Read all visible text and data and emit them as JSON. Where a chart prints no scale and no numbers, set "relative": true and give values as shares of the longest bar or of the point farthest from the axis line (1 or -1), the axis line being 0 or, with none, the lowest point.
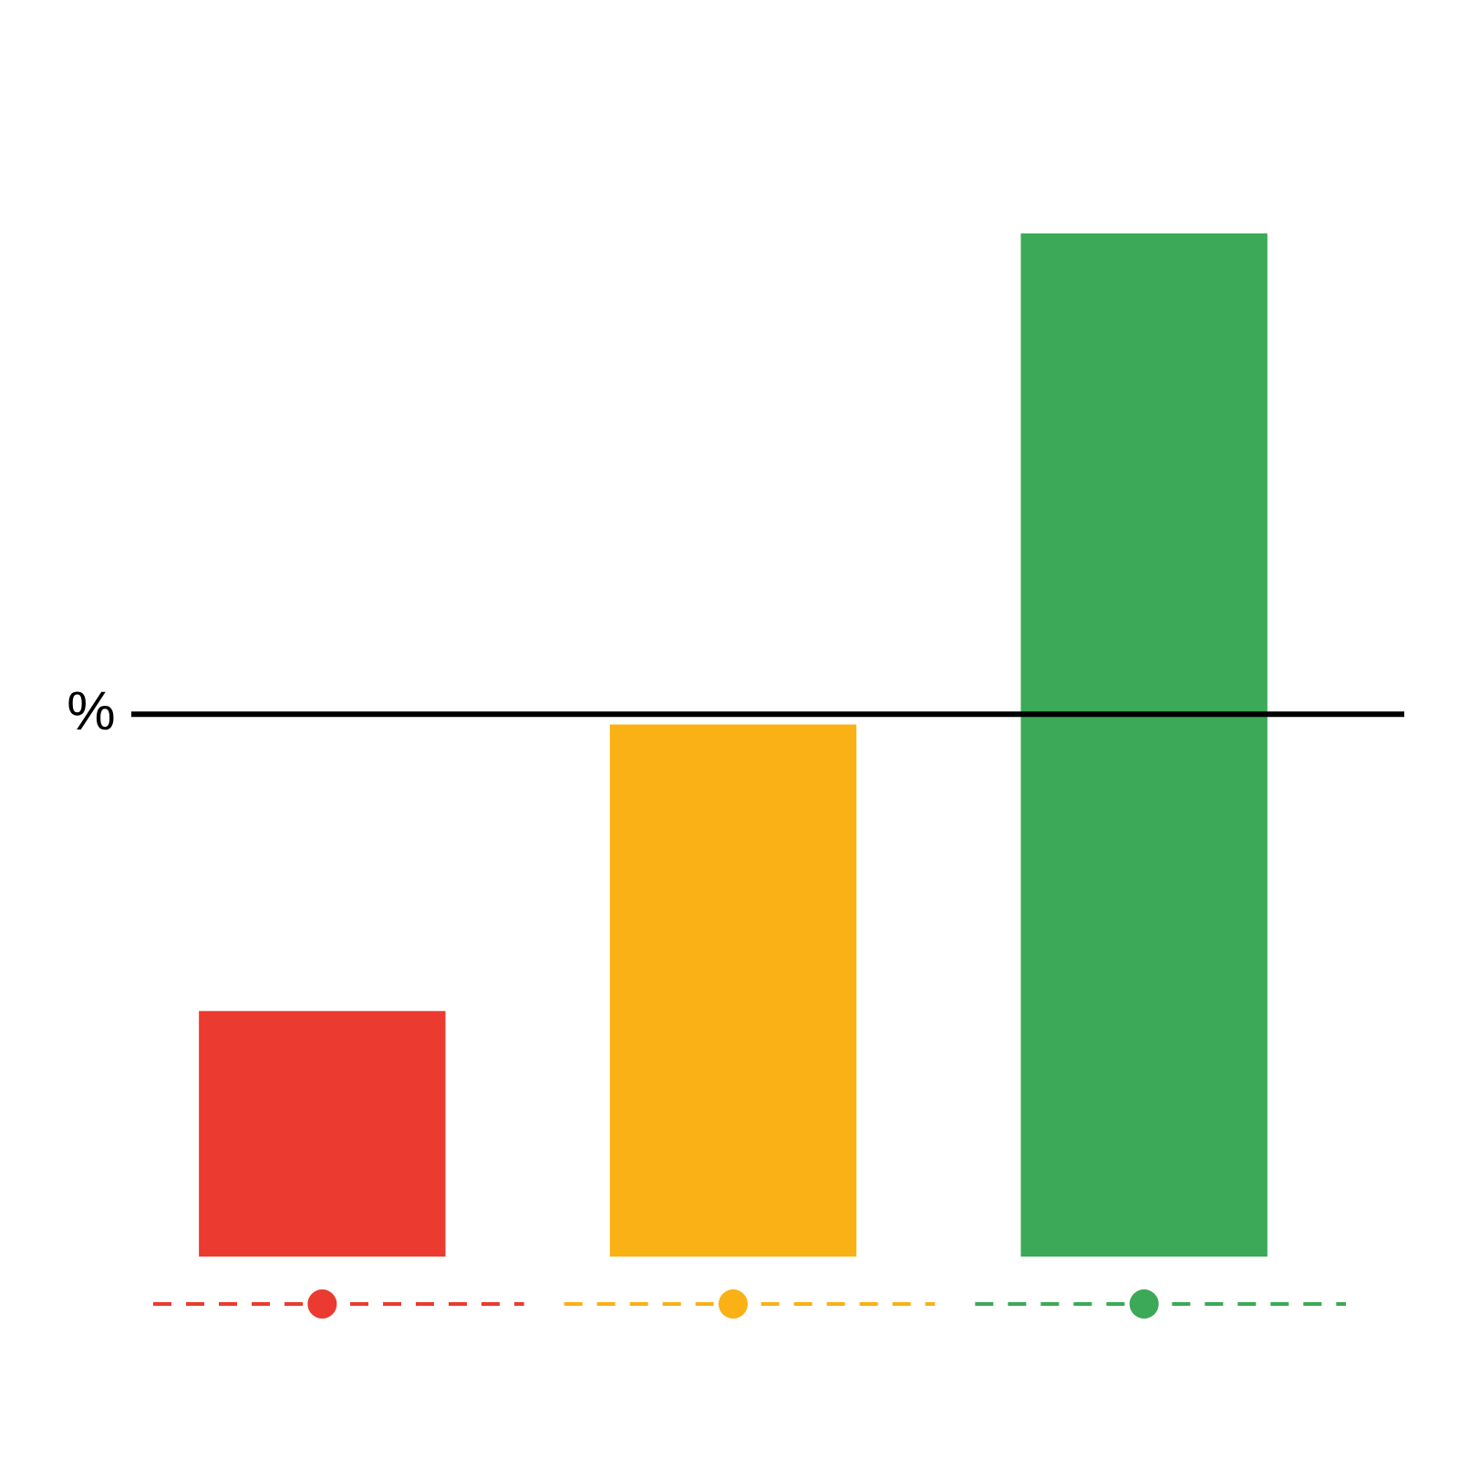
{
  "chart_data": {
    "type": "bar",
    "relative": true,
    "categories": [
      null,
      null,
      null
    ],
    "values": [
      0.24,
      0.52,
      1
    ],
    "colors": [
      "#eb3a30",
      "#f9b116",
      "#3ba957"
    ],
    "ref_lines": [
      {
        "axis": "y",
        "value": 0.53,
        "label": "%",
        "color": "#000000"
      }
    ],
    "legend": false
  }
}
